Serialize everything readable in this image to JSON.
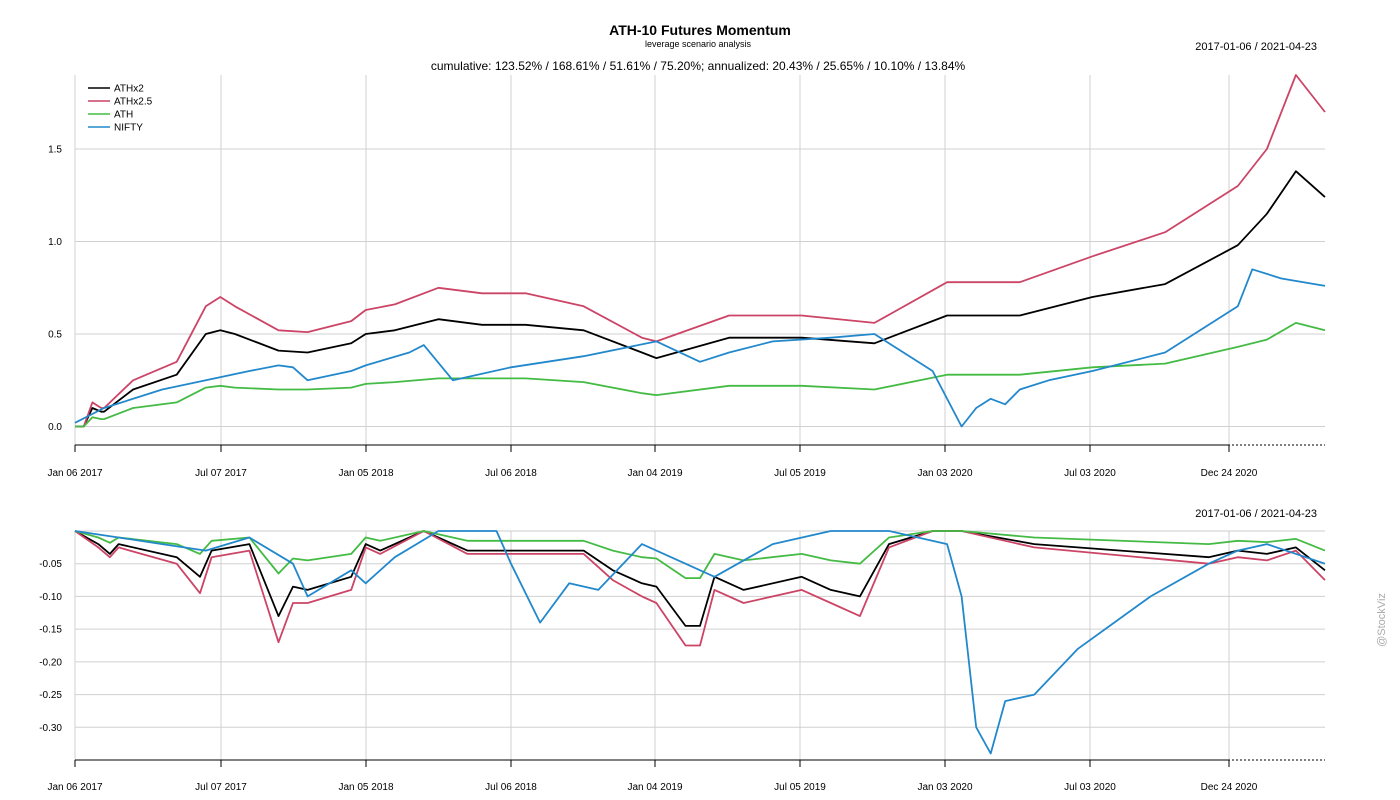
{
  "chart_data": [
    {
      "type": "line",
      "title": "ATH-10 Futures Momentum",
      "subtitle": "leverage scenario analysis",
      "stats_text": "cumulative: 123.52% / 168.61% / 51.61% / 75.20%; annualized: 20.43% / 25.65% / 10.10% / 13.84%",
      "date_range": "2017-01-06 / 2021-04-23",
      "x_tick_labels": [
        "Jan 06 2017",
        "Jul 07 2017",
        "Jan 05 2018",
        "Jul 06 2018",
        "Jan 04 2019",
        "Jul 05 2019",
        "Jan 03 2020",
        "Jul 03 2020",
        "Dec 24 2020"
      ],
      "y_ticks": [
        0.0,
        0.5,
        1.0,
        1.5
      ],
      "y_tick_labels": [
        "0.0",
        "0.5",
        "1.0",
        "1.5"
      ],
      "ylim": [
        -0.1,
        1.9
      ],
      "grid": true,
      "legend_position": "top-left",
      "series": [
        {
          "name": "ATHx2",
          "color": "#000000",
          "x": [
            0,
            0.03,
            0.06,
            0.09,
            0.1,
            0.2,
            0.35,
            0.45,
            0.5,
            0.55,
            0.7,
            0.8,
            0.95,
            1.0,
            1.1,
            1.25,
            1.4,
            1.55,
            1.75,
            1.95,
            2.0,
            2.25,
            2.5,
            2.75,
            3.0,
            3.06,
            3.25,
            3.5,
            3.75,
            4.0,
            4.1,
            4.2,
            4.3
          ],
          "values": [
            0,
            0,
            0.1,
            0.08,
            0.08,
            0.2,
            0.28,
            0.5,
            0.52,
            0.5,
            0.41,
            0.4,
            0.45,
            0.5,
            0.52,
            0.58,
            0.55,
            0.55,
            0.52,
            0.4,
            0.37,
            0.48,
            0.48,
            0.45,
            0.6,
            0.6,
            0.6,
            0.7,
            0.77,
            0.98,
            1.15,
            1.38,
            1.24
          ]
        },
        {
          "name": "ATHx2.5",
          "color": "#cc4466",
          "x": [
            0,
            0.03,
            0.06,
            0.09,
            0.1,
            0.2,
            0.35,
            0.45,
            0.5,
            0.55,
            0.7,
            0.8,
            0.95,
            1.0,
            1.1,
            1.25,
            1.4,
            1.55,
            1.75,
            1.95,
            2.0,
            2.25,
            2.5,
            2.75,
            3.0,
            3.06,
            3.25,
            3.5,
            3.75,
            4.0,
            4.1,
            4.2,
            4.3
          ],
          "values": [
            0,
            0,
            0.13,
            0.1,
            0.1,
            0.25,
            0.35,
            0.65,
            0.7,
            0.65,
            0.52,
            0.51,
            0.57,
            0.63,
            0.66,
            0.75,
            0.72,
            0.72,
            0.65,
            0.48,
            0.46,
            0.6,
            0.6,
            0.56,
            0.78,
            0.78,
            0.78,
            0.92,
            1.05,
            1.3,
            1.5,
            1.9,
            1.7
          ]
        },
        {
          "name": "ATH",
          "color": "#44bb44",
          "x": [
            0,
            0.03,
            0.06,
            0.09,
            0.1,
            0.2,
            0.35,
            0.45,
            0.5,
            0.55,
            0.7,
            0.8,
            0.95,
            1.0,
            1.1,
            1.25,
            1.4,
            1.55,
            1.75,
            1.95,
            2.0,
            2.25,
            2.5,
            2.75,
            3.0,
            3.06,
            3.25,
            3.5,
            3.75,
            4.0,
            4.1,
            4.2,
            4.3
          ],
          "values": [
            0,
            0,
            0.05,
            0.04,
            0.04,
            0.1,
            0.13,
            0.21,
            0.22,
            0.21,
            0.2,
            0.2,
            0.21,
            0.23,
            0.24,
            0.26,
            0.26,
            0.26,
            0.24,
            0.18,
            0.17,
            0.22,
            0.22,
            0.2,
            0.28,
            0.28,
            0.28,
            0.32,
            0.34,
            0.43,
            0.47,
            0.56,
            0.52
          ]
        },
        {
          "name": "NIFTY",
          "color": "#2288cc",
          "x": [
            0,
            0.1,
            0.3,
            0.45,
            0.6,
            0.7,
            0.75,
            0.8,
            0.95,
            1.0,
            1.15,
            1.2,
            1.3,
            1.5,
            1.75,
            2.0,
            2.15,
            2.25,
            2.4,
            2.6,
            2.75,
            2.95,
            3.05,
            3.1,
            3.15,
            3.2,
            3.25,
            3.35,
            3.5,
            3.75,
            4.0,
            4.05,
            4.15,
            4.3
          ],
          "values": [
            0.02,
            0.1,
            0.2,
            0.25,
            0.3,
            0.33,
            0.32,
            0.25,
            0.3,
            0.33,
            0.4,
            0.44,
            0.25,
            0.32,
            0.38,
            0.46,
            0.35,
            0.4,
            0.46,
            0.48,
            0.5,
            0.3,
            0.0,
            0.1,
            0.15,
            0.12,
            0.2,
            0.25,
            0.3,
            0.4,
            0.65,
            0.85,
            0.8,
            0.76
          ]
        }
      ]
    },
    {
      "type": "line",
      "date_range": "2017-01-06 / 2021-04-23",
      "x_tick_labels": [
        "Jan 06 2017",
        "Jul 07 2017",
        "Jan 05 2018",
        "Jul 06 2018",
        "Jan 04 2019",
        "Jul 05 2019",
        "Jan 03 2020",
        "Jul 03 2020",
        "Dec 24 2020"
      ],
      "y_ticks": [
        -0.05,
        -0.1,
        -0.15,
        -0.2,
        -0.25,
        -0.3
      ],
      "y_tick_labels": [
        "-0.05",
        "-0.10",
        "-0.15",
        "-0.20",
        "-0.25",
        "-0.30"
      ],
      "ylim": [
        -0.35,
        0.0
      ],
      "grid": true,
      "series": [
        {
          "name": "ATHx2",
          "color": "#000000",
          "x": [
            0,
            0.08,
            0.12,
            0.15,
            0.35,
            0.43,
            0.47,
            0.6,
            0.7,
            0.75,
            0.8,
            0.95,
            1.0,
            1.05,
            1.2,
            1.35,
            1.5,
            1.75,
            1.85,
            1.95,
            2.0,
            2.1,
            2.15,
            2.2,
            2.3,
            2.5,
            2.6,
            2.7,
            2.8,
            2.95,
            3.0,
            3.05,
            3.3,
            3.9,
            4.0,
            4.1,
            4.2,
            4.3
          ],
          "values": [
            0,
            -0.02,
            -0.035,
            -0.02,
            -0.04,
            -0.07,
            -0.03,
            -0.02,
            -0.13,
            -0.085,
            -0.09,
            -0.07,
            -0.02,
            -0.03,
            0,
            -0.03,
            -0.03,
            -0.03,
            -0.06,
            -0.08,
            -0.085,
            -0.145,
            -0.145,
            -0.07,
            -0.09,
            -0.07,
            -0.09,
            -0.1,
            -0.02,
            0,
            0,
            0,
            -0.02,
            -0.04,
            -0.03,
            -0.035,
            -0.025,
            -0.06
          ]
        },
        {
          "name": "ATHx2.5",
          "color": "#cc4466",
          "x": [
            0,
            0.08,
            0.12,
            0.15,
            0.35,
            0.43,
            0.47,
            0.6,
            0.7,
            0.75,
            0.8,
            0.95,
            1.0,
            1.05,
            1.2,
            1.35,
            1.5,
            1.75,
            1.85,
            1.95,
            2.0,
            2.1,
            2.15,
            2.2,
            2.3,
            2.5,
            2.6,
            2.7,
            2.8,
            2.95,
            3.0,
            3.05,
            3.3,
            3.9,
            4.0,
            4.1,
            4.2,
            4.3
          ],
          "values": [
            0,
            -0.025,
            -0.04,
            -0.025,
            -0.05,
            -0.095,
            -0.04,
            -0.03,
            -0.17,
            -0.11,
            -0.11,
            -0.09,
            -0.025,
            -0.035,
            0,
            -0.035,
            -0.035,
            -0.035,
            -0.075,
            -0.1,
            -0.11,
            -0.175,
            -0.175,
            -0.09,
            -0.11,
            -0.09,
            -0.11,
            -0.13,
            -0.025,
            0,
            0,
            0,
            -0.025,
            -0.05,
            -0.04,
            -0.045,
            -0.03,
            -0.075
          ]
        },
        {
          "name": "ATH",
          "color": "#44bb44",
          "x": [
            0,
            0.08,
            0.12,
            0.15,
            0.35,
            0.43,
            0.47,
            0.6,
            0.7,
            0.75,
            0.8,
            0.95,
            1.0,
            1.05,
            1.2,
            1.35,
            1.5,
            1.75,
            1.85,
            1.95,
            2.0,
            2.1,
            2.15,
            2.2,
            2.3,
            2.5,
            2.6,
            2.7,
            2.8,
            2.95,
            3.0,
            3.05,
            3.3,
            3.9,
            4.0,
            4.1,
            4.2,
            4.3
          ],
          "values": [
            0,
            -0.01,
            -0.018,
            -0.01,
            -0.02,
            -0.035,
            -0.015,
            -0.01,
            -0.065,
            -0.042,
            -0.045,
            -0.035,
            -0.01,
            -0.015,
            0,
            -0.015,
            -0.015,
            -0.015,
            -0.03,
            -0.04,
            -0.042,
            -0.072,
            -0.072,
            -0.035,
            -0.045,
            -0.035,
            -0.045,
            -0.05,
            -0.01,
            0,
            0,
            0,
            -0.01,
            -0.02,
            -0.015,
            -0.017,
            -0.012,
            -0.03
          ]
        },
        {
          "name": "NIFTY",
          "color": "#2288cc",
          "x": [
            0,
            0.15,
            0.3,
            0.45,
            0.6,
            0.75,
            0.8,
            0.95,
            1.0,
            1.1,
            1.25,
            1.45,
            1.5,
            1.6,
            1.7,
            1.8,
            1.95,
            2.1,
            2.2,
            2.4,
            2.6,
            2.8,
            3.0,
            3.05,
            3.1,
            3.15,
            3.2,
            3.3,
            3.45,
            3.7,
            3.9,
            4.0,
            4.1,
            4.3
          ],
          "values": [
            0,
            -0.01,
            -0.02,
            -0.03,
            -0.01,
            -0.05,
            -0.1,
            -0.06,
            -0.08,
            -0.04,
            0,
            0,
            -0.05,
            -0.14,
            -0.08,
            -0.09,
            -0.02,
            -0.05,
            -0.07,
            -0.02,
            0,
            0,
            -0.02,
            -0.1,
            -0.3,
            -0.34,
            -0.26,
            -0.25,
            -0.18,
            -0.1,
            -0.05,
            -0.03,
            -0.02,
            -0.05
          ]
        }
      ]
    }
  ],
  "watermark": "@StockViz"
}
